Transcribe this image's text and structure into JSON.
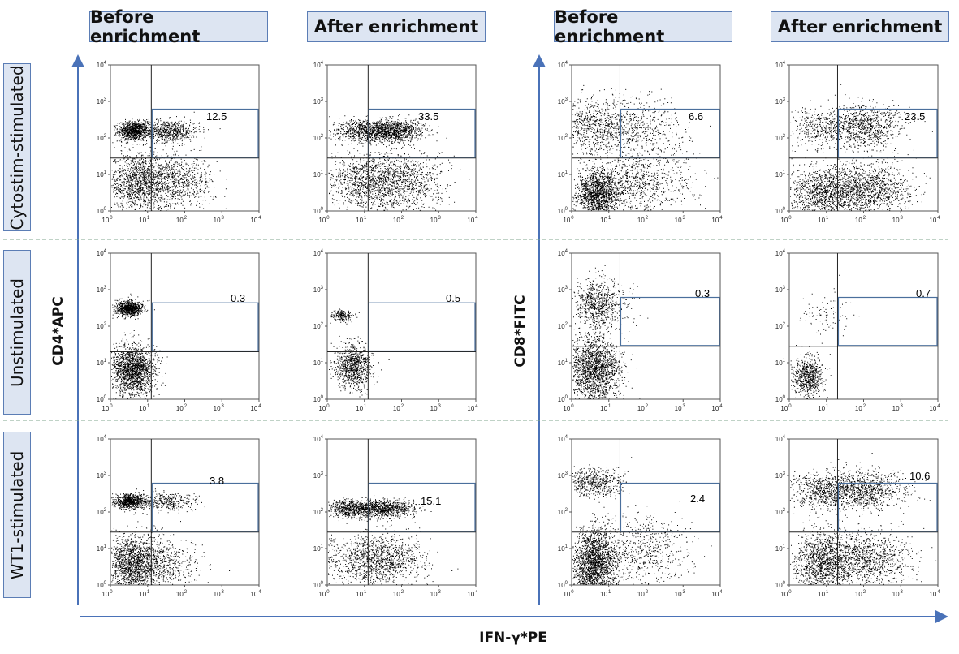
{
  "column_headers": [
    "Before enrichment",
    "After enrichment",
    "Before enrichment",
    "After enrichment"
  ],
  "row_headers": [
    "Cytostim-stimulated",
    "Unstimulated",
    "WT1-stimulated"
  ],
  "axes": {
    "left_y_title": "CD4*APC",
    "right_y_title": "CD8*FITC",
    "x_title": "IFN-γ*PE",
    "tick_labels": [
      "10⁰",
      "10¹",
      "10²",
      "10³",
      "10⁴"
    ],
    "tick_base": "10",
    "tick_exponents": [
      "0",
      "1",
      "2",
      "3",
      "4"
    ]
  },
  "colors": {
    "header_fill": "#dde5f2",
    "header_border": "#5b7db5",
    "arrow": "#4a72b8",
    "gate": "#4a6f9c",
    "dots": "#000000"
  },
  "chart_data": [
    {
      "type": "scatter",
      "row": "Cytostim-stimulated",
      "column": "Before enrichment",
      "marker": "CD4*APC",
      "gate_percent": "12.5",
      "quadrant_x": 1.1,
      "quadrant_y": 1.45,
      "xlim": [
        0,
        4
      ],
      "ylim": [
        0,
        4
      ]
    },
    {
      "type": "scatter",
      "row": "Cytostim-stimulated",
      "column": "After enrichment",
      "marker": "CD4*APC",
      "gate_percent": "33.5",
      "quadrant_x": 1.1,
      "quadrant_y": 1.45,
      "xlim": [
        0,
        4
      ],
      "ylim": [
        0,
        4
      ]
    },
    {
      "type": "scatter",
      "row": "Cytostim-stimulated",
      "column": "Before enrichment",
      "marker": "CD8*FITC",
      "gate_percent": "6.6",
      "quadrant_x": 1.3,
      "quadrant_y": 1.45,
      "xlim": [
        0,
        4
      ],
      "ylim": [
        0,
        4
      ]
    },
    {
      "type": "scatter",
      "row": "Cytostim-stimulated",
      "column": "After enrichment",
      "marker": "CD8*FITC",
      "gate_percent": "23.5",
      "quadrant_x": 1.3,
      "quadrant_y": 1.45,
      "xlim": [
        0,
        4
      ],
      "ylim": [
        0,
        4
      ]
    },
    {
      "type": "scatter",
      "row": "Unstimulated",
      "column": "Before enrichment",
      "marker": "CD4*APC",
      "gate_percent": "0.3",
      "quadrant_x": 1.1,
      "quadrant_y": 1.3,
      "xlim": [
        0,
        4
      ],
      "ylim": [
        0,
        4
      ]
    },
    {
      "type": "scatter",
      "row": "Unstimulated",
      "column": "After enrichment",
      "marker": "CD4*APC",
      "gate_percent": "0.5",
      "quadrant_x": 1.1,
      "quadrant_y": 1.3,
      "xlim": [
        0,
        4
      ],
      "ylim": [
        0,
        4
      ]
    },
    {
      "type": "scatter",
      "row": "Unstimulated",
      "column": "Before enrichment",
      "marker": "CD8*FITC",
      "gate_percent": "0.3",
      "quadrant_x": 1.3,
      "quadrant_y": 1.45,
      "xlim": [
        0,
        4
      ],
      "ylim": [
        0,
        4
      ]
    },
    {
      "type": "scatter",
      "row": "Unstimulated",
      "column": "After enrichment",
      "marker": "CD8*FITC",
      "gate_percent": "0.7",
      "quadrant_x": 1.3,
      "quadrant_y": 1.45,
      "xlim": [
        0,
        4
      ],
      "ylim": [
        0,
        4
      ]
    },
    {
      "type": "scatter",
      "row": "WT1-stimulated",
      "column": "Before enrichment",
      "marker": "CD4*APC",
      "gate_percent": "3.8",
      "quadrant_x": 1.1,
      "quadrant_y": 1.45,
      "xlim": [
        0,
        4
      ],
      "ylim": [
        0,
        4
      ]
    },
    {
      "type": "scatter",
      "row": "WT1-stimulated",
      "column": "After enrichment",
      "marker": "CD4*APC",
      "gate_percent": "15.1",
      "quadrant_x": 1.1,
      "quadrant_y": 1.45,
      "xlim": [
        0,
        4
      ],
      "ylim": [
        0,
        4
      ]
    },
    {
      "type": "scatter",
      "row": "WT1-stimulated",
      "column": "Before enrichment",
      "marker": "CD8*FITC",
      "gate_percent": "2.4",
      "quadrant_x": 1.3,
      "quadrant_y": 1.45,
      "xlim": [
        0,
        4
      ],
      "ylim": [
        0,
        4
      ]
    },
    {
      "type": "scatter",
      "row": "WT1-stimulated",
      "column": "After enrichment",
      "marker": "CD8*FITC",
      "gate_percent": "10.6",
      "quadrant_x": 1.3,
      "quadrant_y": 1.45,
      "xlim": [
        0,
        4
      ],
      "ylim": [
        0,
        4
      ]
    }
  ]
}
